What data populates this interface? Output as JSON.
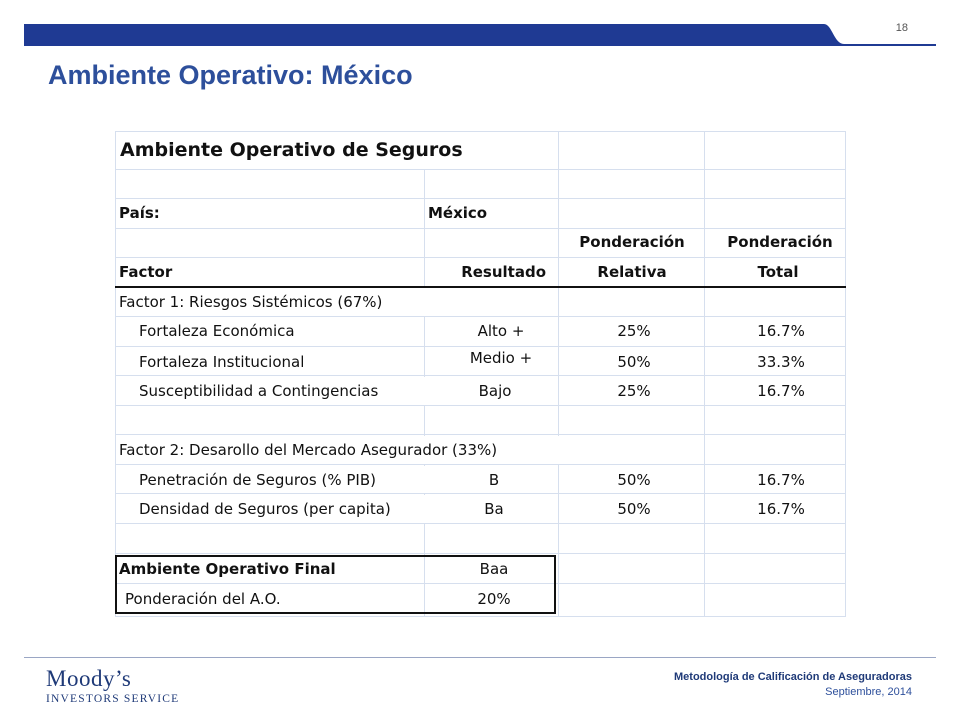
{
  "slide": {
    "page_number": "18",
    "title": "Ambiente Operativo: México",
    "accent_color": "#1f3a93"
  },
  "table": {
    "title": "Ambiente Operativo de Seguros",
    "pais_label": "País:",
    "pais_value": "México",
    "headers": {
      "factor": "Factor",
      "resultado": "Resultado",
      "ponderacion_relativa_1": "Ponderación",
      "ponderacion_relativa_2": "Relativa",
      "ponderacion_total_1": "Ponderación",
      "ponderacion_total_2": "Total"
    },
    "factor1": {
      "title": "Factor 1: Riesgos Sistémicos (67%)",
      "rows": [
        {
          "name": "Fortaleza Económica",
          "resultado": "Alto +",
          "relativa": "25%",
          "total": "16.7%"
        },
        {
          "name": "Fortaleza Institucional",
          "resultado": "Medio +",
          "relativa": "50%",
          "total": "33.3%"
        },
        {
          "name": "Susceptibilidad a Contingencias",
          "resultado": "Bajo",
          "relativa": "25%",
          "total": "16.7%"
        }
      ]
    },
    "factor2": {
      "title": "Factor 2: Desarollo del Mercado Asegurador (33%)",
      "rows": [
        {
          "name": "Penetración de Seguros (% PIB)",
          "resultado": "B",
          "relativa": "50%",
          "total": "16.7%"
        },
        {
          "name": "Densidad de Seguros (per capita)",
          "resultado": "Ba",
          "relativa": "50%",
          "total": "16.7%"
        }
      ]
    },
    "final": {
      "label": "Ambiente Operativo Final",
      "value": "Baa",
      "weight_label": "Ponderación del A.O.",
      "weight_value": "20%"
    }
  },
  "footer": {
    "logo_main": "Moody’s",
    "logo_sub": "INVESTORS SERVICE",
    "doc_title": "Metodología de Calificación de Aseguradoras",
    "date": "Septiembre, 2014"
  }
}
